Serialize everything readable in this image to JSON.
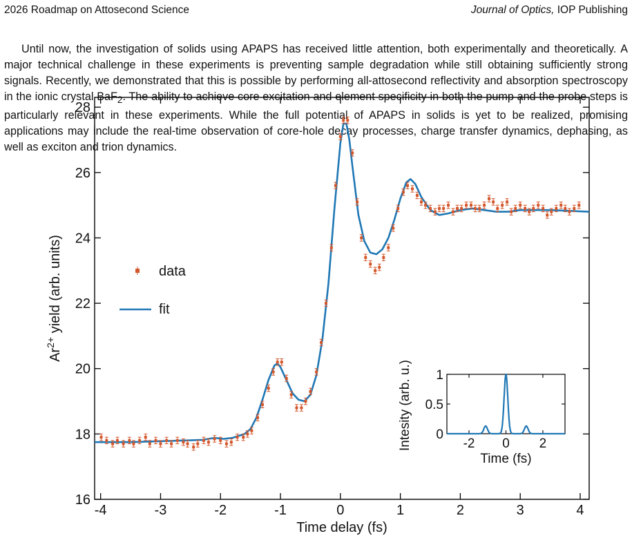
{
  "header": {
    "left": "2026 Roadmap on Attosecond Science",
    "journal": "Journal of Optics,",
    "publisher": " IOP Publishing"
  },
  "paragraph": {
    "part1": "Until now, the investigation of solids using APAPS has received little attention, both experimentally and theoretically. A major technical challenge in these experiments is preventing sample degradation while still obtaining sufficiently strong signals. Recently, we demonstrated that this is possible by performing all-attosecond reflectivity and absorption spectroscopy in the ionic crystal BaF",
    "sub": "2",
    "part2": ". The ability to achieve core excitation and element specificity in both the pump and the probe steps is particularly relevant in these experiments. While the full potential of APAPS in solids is yet to be realized, promising applications may include the real-time observation of core-hole decay processes, charge transfer dynamics, dephasing, as well as exciton and trion dynamics."
  },
  "colors": {
    "data": "#d4562a",
    "fit": "#1f77b4",
    "axis": "#000000"
  },
  "chart_data": [
    {
      "type": "scatter",
      "xlabel": "Time delay (fs)",
      "ylabel_prefix": "Ar",
      "ylabel_sup": "2+",
      "ylabel_suffix": " yield (arb. units)",
      "xlim": [
        -4.1,
        4.15
      ],
      "ylim": [
        16,
        28.3
      ],
      "xticks": [
        -4,
        -3,
        -2,
        -1,
        0,
        1,
        2,
        3,
        4
      ],
      "yticks": [
        16,
        18,
        20,
        22,
        24,
        26,
        28
      ],
      "legend": {
        "position": "top-left",
        "entries": [
          "data",
          "fit"
        ]
      },
      "series": [
        {
          "name": "data",
          "style": "points-with-errorbars",
          "error": 0.1,
          "points": [
            [
              -3.99,
              17.9
            ],
            [
              -3.9,
              17.8
            ],
            [
              -3.8,
              17.7
            ],
            [
              -3.72,
              17.8
            ],
            [
              -3.62,
              17.7
            ],
            [
              -3.52,
              17.8
            ],
            [
              -3.45,
              17.7
            ],
            [
              -3.35,
              17.8
            ],
            [
              -3.25,
              17.9
            ],
            [
              -3.18,
              17.7
            ],
            [
              -3.08,
              17.8
            ],
            [
              -3.0,
              17.7
            ],
            [
              -2.9,
              17.8
            ],
            [
              -2.82,
              17.7
            ],
            [
              -2.72,
              17.8
            ],
            [
              -2.62,
              17.75
            ],
            [
              -2.55,
              17.7
            ],
            [
              -2.45,
              17.6
            ],
            [
              -2.38,
              17.7
            ],
            [
              -2.28,
              17.8
            ],
            [
              -2.2,
              17.75
            ],
            [
              -2.1,
              17.85
            ],
            [
              -2.0,
              17.8
            ],
            [
              -1.9,
              17.7
            ],
            [
              -1.82,
              17.75
            ],
            [
              -1.72,
              17.9
            ],
            [
              -1.62,
              17.9
            ],
            [
              -1.55,
              18.0
            ],
            [
              -1.48,
              18.1
            ],
            [
              -1.38,
              18.5
            ],
            [
              -1.3,
              18.9
            ],
            [
              -1.2,
              19.4
            ],
            [
              -1.12,
              19.9
            ],
            [
              -1.05,
              20.2
            ],
            [
              -0.98,
              20.2
            ],
            [
              -0.9,
              19.7
            ],
            [
              -0.82,
              19.2
            ],
            [
              -0.73,
              18.8
            ],
            [
              -0.65,
              18.8
            ],
            [
              -0.58,
              19.0
            ],
            [
              -0.5,
              19.3
            ],
            [
              -0.4,
              19.9
            ],
            [
              -0.32,
              20.8
            ],
            [
              -0.24,
              22.0
            ],
            [
              -0.15,
              23.7
            ],
            [
              -0.08,
              25.6
            ],
            [
              0.0,
              27.1
            ],
            [
              0.05,
              27.6
            ],
            [
              0.12,
              27.6
            ],
            [
              0.2,
              26.6
            ],
            [
              0.28,
              25.1
            ],
            [
              0.35,
              24.0
            ],
            [
              0.42,
              23.4
            ],
            [
              0.5,
              23.2
            ],
            [
              0.58,
              23.0
            ],
            [
              0.65,
              23.1
            ],
            [
              0.72,
              23.4
            ],
            [
              0.8,
              23.7
            ],
            [
              0.88,
              24.3
            ],
            [
              0.96,
              24.9
            ],
            [
              1.05,
              25.4
            ],
            [
              1.12,
              25.6
            ],
            [
              1.2,
              25.5
            ],
            [
              1.28,
              25.3
            ],
            [
              1.35,
              25.1
            ],
            [
              1.42,
              25.0
            ],
            [
              1.5,
              24.9
            ],
            [
              1.58,
              24.8
            ],
            [
              1.65,
              24.9
            ],
            [
              1.72,
              24.9
            ],
            [
              1.8,
              25.0
            ],
            [
              1.88,
              24.8
            ],
            [
              1.95,
              24.9
            ],
            [
              2.02,
              24.9
            ],
            [
              2.1,
              25.0
            ],
            [
              2.18,
              25.0
            ],
            [
              2.25,
              24.9
            ],
            [
              2.32,
              24.9
            ],
            [
              2.4,
              25.0
            ],
            [
              2.48,
              25.2
            ],
            [
              2.55,
              25.1
            ],
            [
              2.62,
              24.9
            ],
            [
              2.7,
              25.0
            ],
            [
              2.78,
              25.1
            ],
            [
              2.85,
              24.8
            ],
            [
              2.92,
              24.9
            ],
            [
              3.0,
              25.0
            ],
            [
              3.08,
              24.9
            ],
            [
              3.15,
              24.8
            ],
            [
              3.22,
              24.9
            ],
            [
              3.3,
              25.0
            ],
            [
              3.38,
              24.9
            ],
            [
              3.45,
              24.7
            ],
            [
              3.52,
              24.8
            ],
            [
              3.6,
              24.9
            ],
            [
              3.68,
              25.0
            ],
            [
              3.75,
              24.9
            ],
            [
              3.82,
              24.8
            ],
            [
              3.9,
              24.9
            ],
            [
              3.98,
              25.0
            ]
          ]
        },
        {
          "name": "fit",
          "style": "line",
          "points": [
            [
              -4.1,
              17.75
            ],
            [
              -3.5,
              17.75
            ],
            [
              -3.0,
              17.78
            ],
            [
              -2.6,
              17.8
            ],
            [
              -2.3,
              17.82
            ],
            [
              -2.1,
              17.88
            ],
            [
              -1.95,
              17.85
            ],
            [
              -1.8,
              17.88
            ],
            [
              -1.6,
              18.0
            ],
            [
              -1.5,
              18.15
            ],
            [
              -1.4,
              18.5
            ],
            [
              -1.3,
              19.05
            ],
            [
              -1.2,
              19.65
            ],
            [
              -1.1,
              20.1
            ],
            [
              -1.05,
              20.15
            ],
            [
              -1.0,
              20.05
            ],
            [
              -0.9,
              19.65
            ],
            [
              -0.8,
              19.25
            ],
            [
              -0.7,
              19.05
            ],
            [
              -0.6,
              19.0
            ],
            [
              -0.5,
              19.2
            ],
            [
              -0.4,
              19.8
            ],
            [
              -0.3,
              20.9
            ],
            [
              -0.2,
              22.6
            ],
            [
              -0.1,
              24.9
            ],
            [
              0.0,
              26.9
            ],
            [
              0.05,
              27.5
            ],
            [
              0.1,
              27.5
            ],
            [
              0.15,
              27.0
            ],
            [
              0.2,
              26.2
            ],
            [
              0.3,
              24.7
            ],
            [
              0.4,
              23.9
            ],
            [
              0.5,
              23.55
            ],
            [
              0.6,
              23.5
            ],
            [
              0.7,
              23.65
            ],
            [
              0.8,
              24.0
            ],
            [
              0.9,
              24.55
            ],
            [
              1.0,
              25.2
            ],
            [
              1.1,
              25.7
            ],
            [
              1.17,
              25.8
            ],
            [
              1.25,
              25.65
            ],
            [
              1.35,
              25.25
            ],
            [
              1.5,
              24.85
            ],
            [
              1.65,
              24.7
            ],
            [
              1.8,
              24.75
            ],
            [
              2.0,
              24.85
            ],
            [
              2.2,
              24.9
            ],
            [
              2.4,
              24.85
            ],
            [
              2.6,
              24.8
            ],
            [
              2.8,
              24.8
            ],
            [
              3.0,
              24.85
            ],
            [
              3.5,
              24.85
            ],
            [
              4.15,
              24.8
            ]
          ]
        }
      ]
    },
    {
      "type": "line",
      "role": "inset",
      "xlabel": "Time (fs)",
      "ylabel": "Intesity (arb. u.)",
      "xlim": [
        -3.2,
        3.2
      ],
      "ylim": [
        0,
        1
      ],
      "xticks": [
        -2,
        0,
        2
      ],
      "yticks": [
        0,
        0.5,
        1
      ],
      "ytick_labels": [
        "0",
        "0.5",
        "1"
      ],
      "series": [
        {
          "pulses": [
            {
              "center": -1.1,
              "amplitude": 0.13,
              "width": 0.1
            },
            {
              "center": 0.0,
              "amplitude": 1.0,
              "width": 0.1
            },
            {
              "center": 1.1,
              "amplitude": 0.13,
              "width": 0.1
            }
          ]
        }
      ]
    }
  ]
}
